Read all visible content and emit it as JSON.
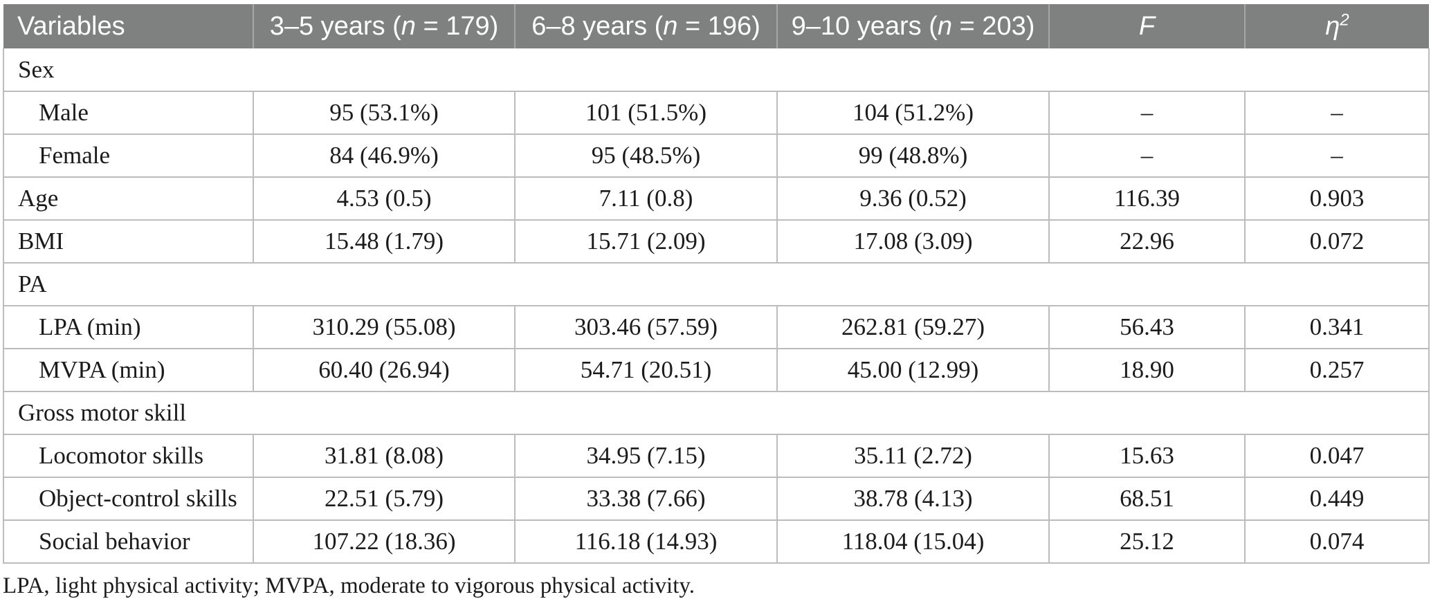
{
  "table": {
    "columns": [
      {
        "id": "variables",
        "label": "Variables",
        "align": "left"
      },
      {
        "id": "group-3-5",
        "pre": "3–5 years (",
        "italic": "n",
        "post": " = 179)"
      },
      {
        "id": "group-6-8",
        "pre": "6–8 years (",
        "italic": "n",
        "post": " = 196)"
      },
      {
        "id": "group-9-10",
        "pre": "9–10 years (",
        "italic": "n",
        "post": " = 203)"
      },
      {
        "id": "f-statistic",
        "pre": "",
        "italic": "F",
        "post": ""
      },
      {
        "id": "eta-squared",
        "pre": "",
        "italic": "η",
        "sup": "2",
        "post": ""
      }
    ],
    "rows": [
      {
        "type": "section",
        "label": "Sex"
      },
      {
        "type": "data",
        "indent": true,
        "label": "Male",
        "values": [
          "95 (53.1%)",
          "101 (51.5%)",
          "104 (51.2%)",
          "–",
          "–"
        ]
      },
      {
        "type": "data",
        "indent": true,
        "label": "Female",
        "values": [
          "84 (46.9%)",
          "95 (48.5%)",
          "99 (48.8%)",
          "–",
          "–"
        ]
      },
      {
        "type": "data",
        "indent": false,
        "label": "Age",
        "values": [
          "4.53 (0.5)",
          "7.11 (0.8)",
          "9.36 (0.52)",
          "116.39",
          "0.903"
        ]
      },
      {
        "type": "data",
        "indent": false,
        "label": "BMI",
        "values": [
          "15.48 (1.79)",
          "15.71 (2.09)",
          "17.08 (3.09)",
          "22.96",
          "0.072"
        ]
      },
      {
        "type": "section",
        "label": "PA"
      },
      {
        "type": "data",
        "indent": true,
        "label": "LPA (min)",
        "values": [
          "310.29 (55.08)",
          "303.46 (57.59)",
          "262.81 (59.27)",
          "56.43",
          "0.341"
        ]
      },
      {
        "type": "data",
        "indent": true,
        "label": "MVPA (min)",
        "values": [
          "60.40 (26.94)",
          "54.71 (20.51)",
          "45.00 (12.99)",
          "18.90",
          "0.257"
        ]
      },
      {
        "type": "section",
        "label": "Gross motor skill"
      },
      {
        "type": "data",
        "indent": true,
        "label": "Locomotor skills",
        "values": [
          "31.81 (8.08)",
          "34.95 (7.15)",
          "35.11 (2.72)",
          "15.63",
          "0.047"
        ]
      },
      {
        "type": "data",
        "indent": true,
        "label": "Object-control skills",
        "values": [
          "22.51 (5.79)",
          "33.38 (7.66)",
          "38.78 (4.13)",
          "68.51",
          "0.449"
        ]
      },
      {
        "type": "data",
        "indent": true,
        "label": "Social behavior",
        "values": [
          "107.22 (18.36)",
          "116.18 (14.93)",
          "118.04 (15.04)",
          "25.12",
          "0.074"
        ]
      }
    ]
  },
  "footnote": "LPA, light physical activity; MVPA, moderate to vigorous physical activity.",
  "colors": {
    "header_bg": "#7f8080",
    "header_text": "#ffffff",
    "grid_line": "#bcbcbc",
    "body_text": "#1b1b1b"
  }
}
